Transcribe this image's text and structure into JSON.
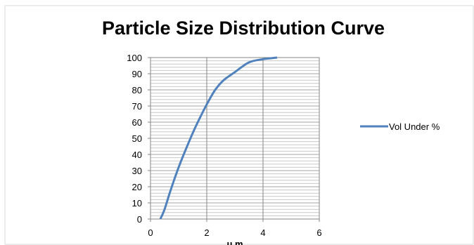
{
  "chart_data": {
    "type": "line",
    "title": "Particle Size Distribution Curve",
    "xlabel": "μ m",
    "ylabel": "",
    "xlim": [
      0,
      6
    ],
    "ylim": [
      0,
      100
    ],
    "x_ticks": [
      "0",
      "2",
      "4",
      "6"
    ],
    "y_ticks": [
      "0",
      "10",
      "20",
      "30",
      "40",
      "50",
      "60",
      "70",
      "80",
      "90",
      "100"
    ],
    "grid": {
      "major_x": true,
      "minor_y_step": 2
    },
    "legend_position": "right",
    "series": [
      {
        "name": "Vol Under %",
        "color": "#4f81bd",
        "x": [
          0.35,
          0.5,
          0.7,
          1.0,
          1.3,
          1.6,
          2.0,
          2.3,
          2.6,
          3.0,
          3.5,
          4.0,
          4.5
        ],
        "y": [
          0,
          6,
          17,
          32,
          45,
          57,
          71,
          80,
          86,
          91,
          97,
          99,
          100
        ]
      }
    ]
  }
}
